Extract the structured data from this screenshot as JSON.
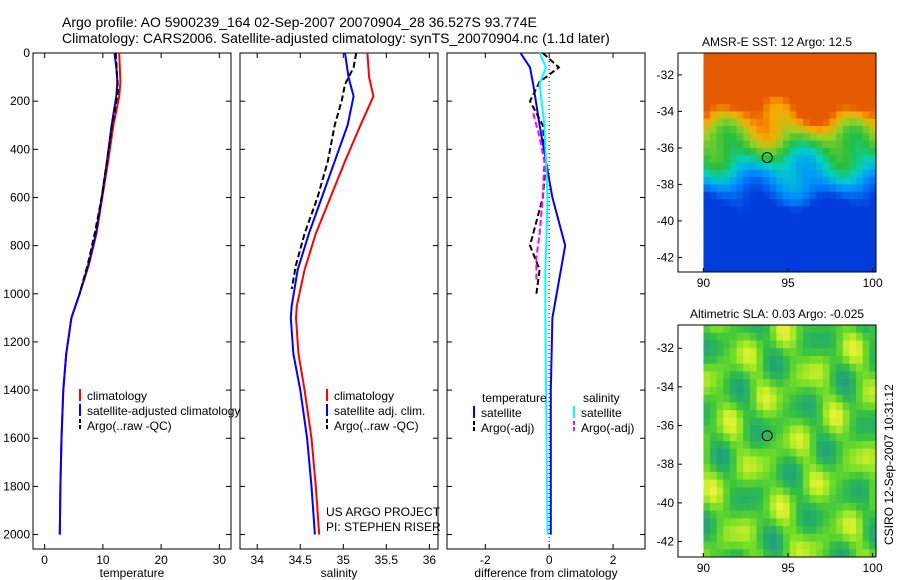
{
  "header": {
    "line1": "Argo profile: AO 5900239_164 02-Sep-2007 20070904_28 36.527S 93.774E",
    "line2": "Climatology: CARS2006. Satellite-adjusted climatology: synTS_20070904.nc (1.1d later)"
  },
  "credit": {
    "project": "US ARGO PROJECT",
    "pi": "PI: STEPHEN RISER"
  },
  "footer": "CSIRO 12-Sep-2007 10:31:12",
  "colors": {
    "climatology": "#ff0000",
    "satellite": "#0000ff",
    "argo": "#000000",
    "salinity_satellite": "#00ffff",
    "salinity_argo": "#ff00ff"
  },
  "chart_data": [
    {
      "type": "line",
      "xlabel": "temperature",
      "ylabel": "",
      "xlim": [
        -2,
        32
      ],
      "ylim": [
        0,
        2060
      ],
      "y_reversed": true,
      "xticks": [
        "0",
        "10",
        "20",
        "30"
      ],
      "xtick_values": [
        0,
        10,
        20,
        30
      ],
      "yticks": [
        "0",
        "200",
        "400",
        "600",
        "800",
        "1000",
        "1200",
        "1400",
        "1600",
        "1800",
        "2000"
      ],
      "ytick_values": [
        0,
        200,
        400,
        600,
        800,
        1000,
        1200,
        1400,
        1600,
        1800,
        2000
      ],
      "legend": [
        "climatology",
        "satellite-adjusted climatology",
        "Argo(..raw -QC)"
      ],
      "series": [
        {
          "name": "climatology",
          "style": "solid",
          "color": "#ff0000",
          "points": [
            [
              12.8,
              0
            ],
            [
              12.9,
              60
            ],
            [
              13.0,
              120
            ],
            [
              12.8,
              180
            ],
            [
              11.8,
              300
            ],
            [
              10.9,
              450
            ],
            [
              9.9,
              600
            ],
            [
              8.9,
              750
            ],
            [
              7.6,
              880
            ],
            [
              6.0,
              1000
            ],
            [
              4.6,
              1100
            ],
            [
              3.7,
              1250
            ],
            [
              3.2,
              1400
            ],
            [
              2.9,
              1600
            ],
            [
              2.7,
              1800
            ],
            [
              2.6,
              2000
            ]
          ]
        },
        {
          "name": "satellite-adjusted climatology",
          "style": "solid",
          "color": "#0000ff",
          "points": [
            [
              12.0,
              0
            ],
            [
              12.3,
              60
            ],
            [
              12.5,
              120
            ],
            [
              12.3,
              180
            ],
            [
              11.5,
              300
            ],
            [
              10.7,
              450
            ],
            [
              9.8,
              600
            ],
            [
              8.8,
              750
            ],
            [
              7.5,
              880
            ],
            [
              6.0,
              1000
            ],
            [
              4.6,
              1100
            ],
            [
              3.7,
              1250
            ],
            [
              3.2,
              1400
            ],
            [
              2.9,
              1600
            ],
            [
              2.7,
              1800
            ],
            [
              2.6,
              2000
            ]
          ]
        },
        {
          "name": "Argo(..raw -QC)",
          "style": "dashed",
          "color": "#000000",
          "points": [
            [
              12.2,
              0
            ],
            [
              12.4,
              80
            ],
            [
              12.6,
              160
            ],
            [
              11.6,
              300
            ],
            [
              10.7,
              450
            ],
            [
              9.8,
              600
            ],
            [
              8.6,
              750
            ],
            [
              7.4,
              880
            ],
            [
              6.0,
              1000
            ]
          ]
        }
      ]
    },
    {
      "type": "line",
      "xlabel": "salinity",
      "ylabel": "",
      "xlim": [
        33.8,
        36.1
      ],
      "ylim": [
        0,
        2060
      ],
      "y_reversed": true,
      "xticks": [
        "34",
        "34.5",
        "35",
        "35.5",
        "36"
      ],
      "xtick_values": [
        34,
        34.5,
        35,
        35.5,
        36
      ],
      "legend": [
        "climatology",
        "satellite adj. clim.",
        "Argo(..raw -QC)"
      ],
      "series": [
        {
          "name": "climatology",
          "style": "solid",
          "color": "#ff0000",
          "points": [
            [
              35.28,
              0
            ],
            [
              35.3,
              100
            ],
            [
              35.35,
              180
            ],
            [
              35.2,
              300
            ],
            [
              35.02,
              450
            ],
            [
              34.85,
              600
            ],
            [
              34.68,
              750
            ],
            [
              34.55,
              900
            ],
            [
              34.46,
              1050
            ],
            [
              34.45,
              1100
            ],
            [
              34.48,
              1250
            ],
            [
              34.55,
              1400
            ],
            [
              34.63,
              1600
            ],
            [
              34.68,
              1800
            ],
            [
              34.72,
              2000
            ]
          ]
        },
        {
          "name": "satellite adj. clim.",
          "style": "solid",
          "color": "#0000ff",
          "points": [
            [
              35.02,
              0
            ],
            [
              35.06,
              100
            ],
            [
              35.12,
              180
            ],
            [
              35.05,
              300
            ],
            [
              34.9,
              450
            ],
            [
              34.75,
              600
            ],
            [
              34.6,
              750
            ],
            [
              34.47,
              900
            ],
            [
              34.4,
              1050
            ],
            [
              34.39,
              1100
            ],
            [
              34.42,
              1250
            ],
            [
              34.5,
              1400
            ],
            [
              34.58,
              1600
            ],
            [
              34.63,
              1800
            ],
            [
              34.67,
              2000
            ]
          ]
        },
        {
          "name": "Argo(..raw -QC)",
          "style": "dashed",
          "color": "#000000",
          "points": [
            [
              35.15,
              0
            ],
            [
              35.12,
              60
            ],
            [
              35.02,
              130
            ],
            [
              34.98,
              200
            ],
            [
              34.9,
              300
            ],
            [
              34.82,
              450
            ],
            [
              34.7,
              600
            ],
            [
              34.55,
              750
            ],
            [
              34.45,
              880
            ],
            [
              34.4,
              980
            ]
          ]
        }
      ]
    },
    {
      "type": "line",
      "xlabel": "difference from climatology",
      "ylabel": "",
      "xlim": [
        -3.2,
        3.0
      ],
      "ylim": [
        0,
        2060
      ],
      "y_reversed": true,
      "xticks": [
        "-2",
        "0",
        "2"
      ],
      "xtick_values": [
        -2,
        0,
        2
      ],
      "legend_left_title": "temperature",
      "legend_right_title": "salinity",
      "legend_left": [
        "satellite",
        "Argo(-adj)"
      ],
      "legend_right": [
        "satellite",
        "Argo(-adj)"
      ],
      "series": [
        {
          "name": "temperature satellite",
          "style": "solid",
          "color": "#0000ff",
          "points": [
            [
              -0.9,
              0
            ],
            [
              -0.6,
              60
            ],
            [
              -0.5,
              130
            ],
            [
              -0.3,
              300
            ],
            [
              -0.1,
              450
            ],
            [
              0.1,
              600
            ],
            [
              0.3,
              700
            ],
            [
              0.5,
              800
            ],
            [
              0.3,
              950
            ],
            [
              0.1,
              1100
            ],
            [
              0.05,
              1400
            ],
            [
              0.05,
              2000
            ]
          ]
        },
        {
          "name": "temperature Argo(-adj)",
          "style": "dashed",
          "color": "#000000",
          "points": [
            [
              -0.2,
              0
            ],
            [
              0.3,
              60
            ],
            [
              -0.3,
              120
            ],
            [
              -0.6,
              200
            ],
            [
              -0.2,
              300
            ],
            [
              -0.1,
              450
            ],
            [
              -0.2,
              600
            ],
            [
              -0.6,
              800
            ],
            [
              -0.3,
              900
            ],
            [
              -0.4,
              1000
            ]
          ]
        },
        {
          "name": "salinity satellite",
          "style": "solid",
          "color": "#00ffff",
          "points": [
            [
              -0.3,
              0
            ],
            [
              -0.1,
              60
            ],
            [
              -0.3,
              130
            ],
            [
              -0.15,
              300
            ],
            [
              -0.1,
              450
            ],
            [
              -0.05,
              600
            ],
            [
              -0.08,
              750
            ],
            [
              -0.12,
              900
            ],
            [
              -0.12,
              1100
            ],
            [
              -0.1,
              1400
            ],
            [
              -0.05,
              2000
            ]
          ]
        },
        {
          "name": "salinity Argo(-adj)",
          "style": "dashed",
          "color": "#ff00ff",
          "points": [
            [
              -0.5,
              250
            ],
            [
              -0.3,
              350
            ],
            [
              -0.15,
              450
            ],
            [
              -0.2,
              600
            ],
            [
              -0.3,
              750
            ],
            [
              -0.4,
              850
            ],
            [
              -0.4,
              950
            ]
          ]
        }
      ]
    },
    {
      "type": "heatmap",
      "title": "AMSR-E SST: 12 Argo: 12.5",
      "xlim": [
        88.5,
        100.2
      ],
      "ylim": [
        -42.8,
        -30.8
      ],
      "xticks": [
        "90",
        "95",
        "100"
      ],
      "xtick_values": [
        90,
        95,
        100
      ],
      "yticks": [
        "-32",
        "-34",
        "-36",
        "-38",
        "-40",
        "-42"
      ],
      "ytick_values": [
        -32,
        -34,
        -36,
        -38,
        -40,
        -42
      ],
      "marker": [
        93.77,
        -36.53
      ]
    },
    {
      "type": "heatmap",
      "title": "Altimetric SLA: 0.03 Argo: -0.025",
      "xlim": [
        88.5,
        100.2
      ],
      "ylim": [
        -42.8,
        -30.8
      ],
      "xticks": [
        "90",
        "95",
        "100"
      ],
      "xtick_values": [
        90,
        95,
        100
      ],
      "yticks": [
        "-32",
        "-34",
        "-36",
        "-38",
        "-40",
        "-42"
      ],
      "ytick_values": [
        -32,
        -34,
        -36,
        -38,
        -40,
        -42
      ],
      "marker": [
        93.77,
        -36.53
      ]
    }
  ]
}
